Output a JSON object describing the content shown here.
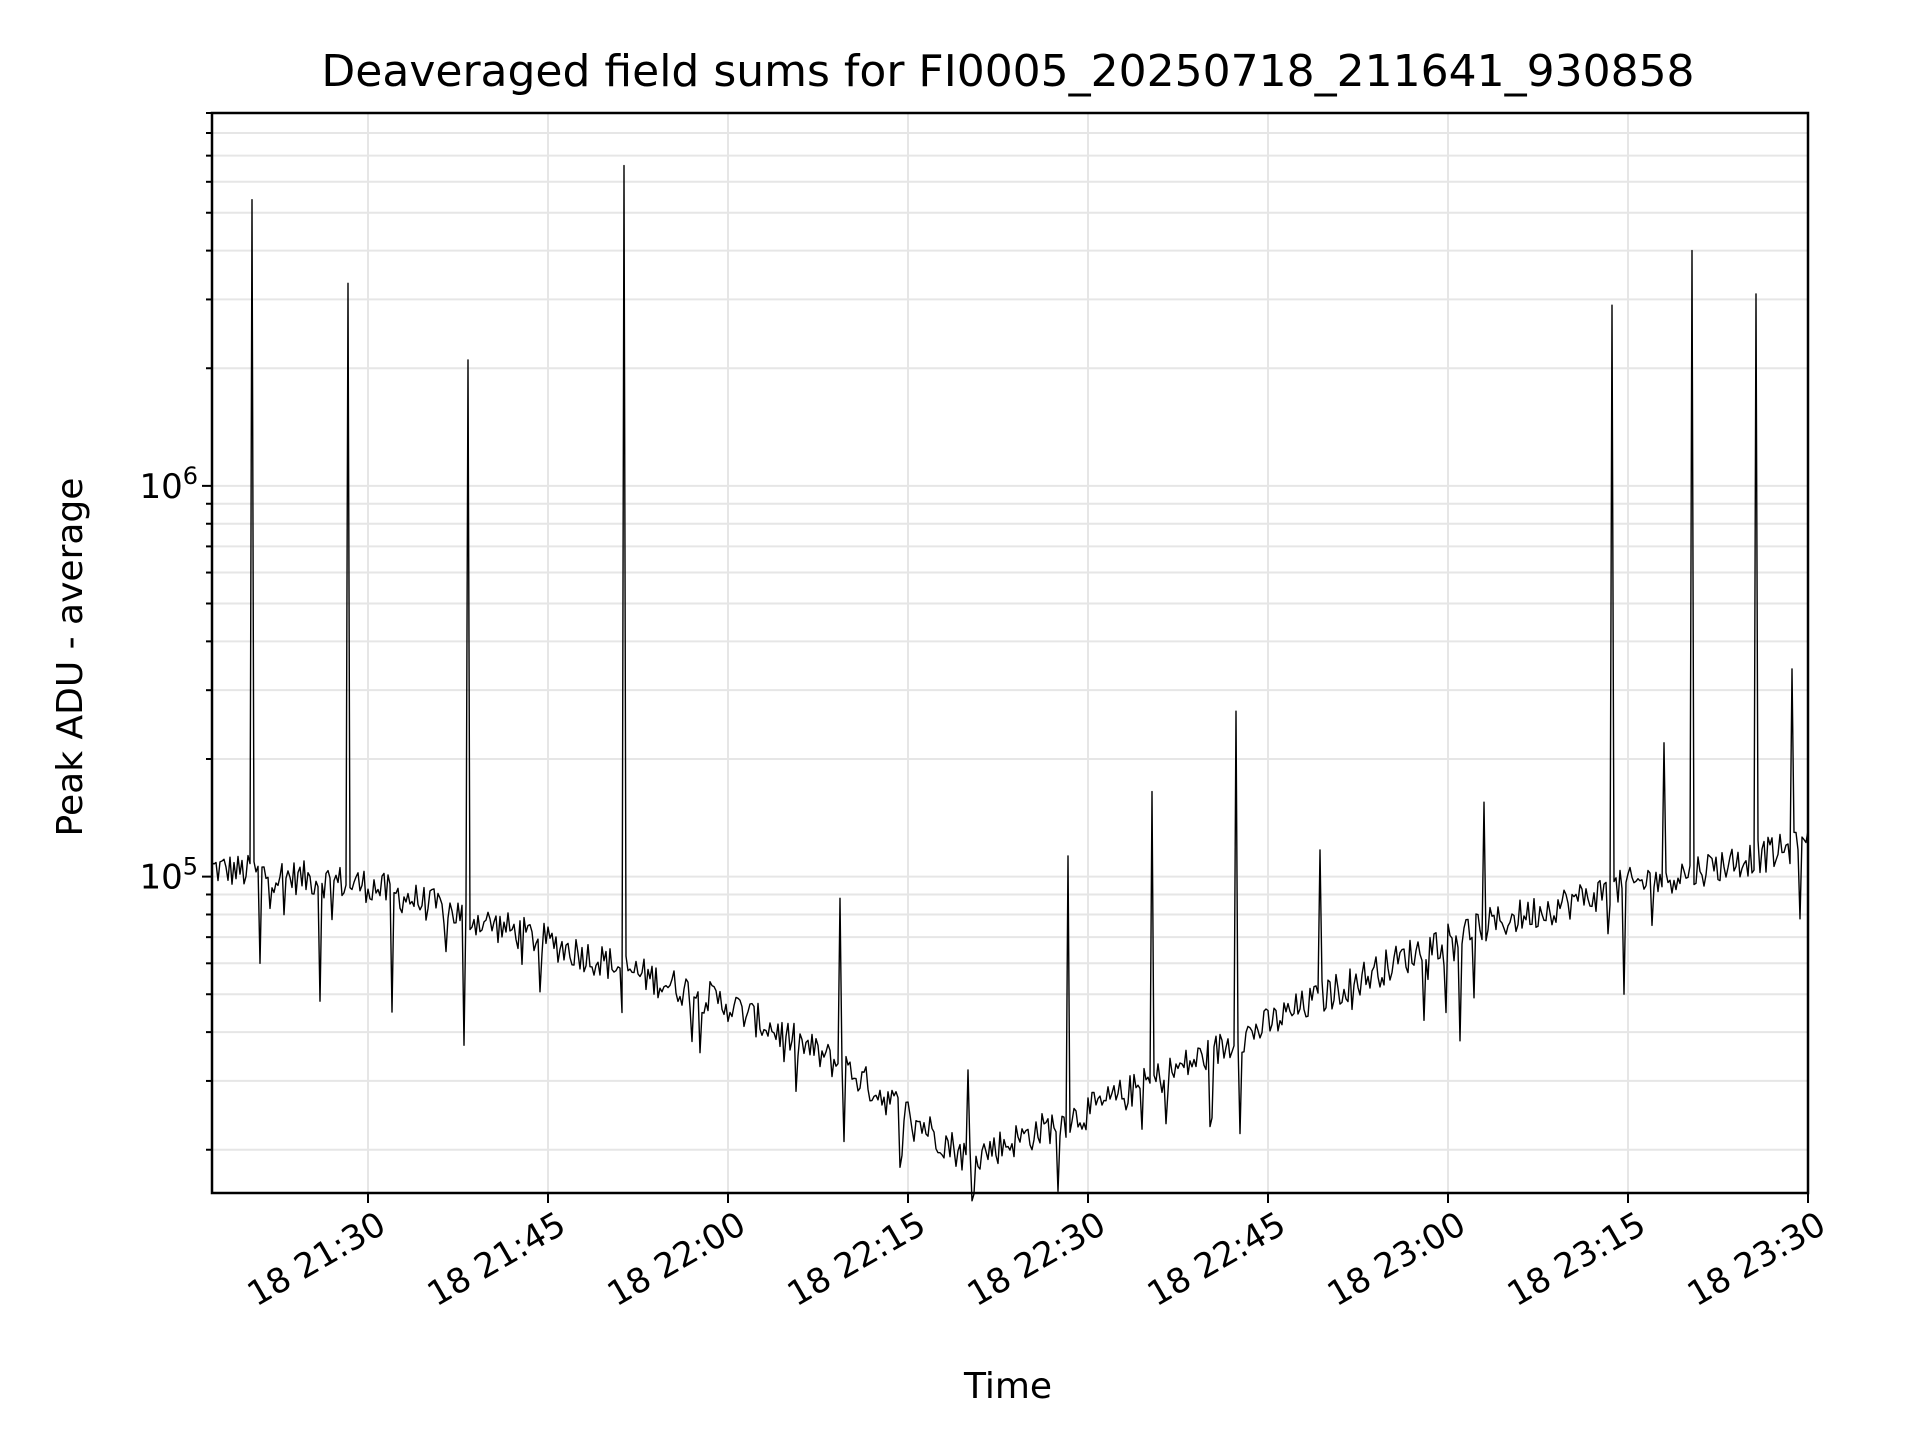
{
  "chart_data": {
    "type": "line",
    "title": "Deaveraged field sums for FI0005_20250718_211641_930858",
    "xlabel": "Time",
    "ylabel": "Peak ADU - average",
    "yscale": "log",
    "grid": true,
    "legend": false,
    "series_color": "#000000",
    "x_start": "2025-07-18 21:17",
    "x_end": "2025-07-18 23:30",
    "xlim": [
      "2025-07-18 21:17",
      "2025-07-18 23:30"
    ],
    "ylim": [
      15500,
      9000000
    ],
    "x_ticks": [
      {
        "t": "2025-07-18 21:30",
        "label": "18 21:30"
      },
      {
        "t": "2025-07-18 21:45",
        "label": "18 21:45"
      },
      {
        "t": "2025-07-18 22:00",
        "label": "18 22:00"
      },
      {
        "t": "2025-07-18 22:15",
        "label": "18 22:15"
      },
      {
        "t": "2025-07-18 22:30",
        "label": "18 22:30"
      },
      {
        "t": "2025-07-18 22:45",
        "label": "18 22:45"
      },
      {
        "t": "2025-07-18 23:00",
        "label": "18 23:00"
      },
      {
        "t": "2025-07-18 23:15",
        "label": "18 23:15"
      },
      {
        "t": "2025-07-18 23:30",
        "label": "18 23:30"
      }
    ],
    "y_ticks": [
      {
        "value": 100000,
        "base": "10",
        "exp": "5"
      },
      {
        "value": 1000000,
        "base": "10",
        "exp": "6"
      }
    ],
    "baseline": [
      [
        "2025-07-18 21:17",
        105000
      ],
      [
        "2025-07-18 21:30",
        95000
      ],
      [
        "2025-07-18 21:45",
        68000
      ],
      [
        "2025-07-18 22:00",
        47000
      ],
      [
        "2025-07-18 22:10",
        32000
      ],
      [
        "2025-07-18 22:20",
        19000
      ],
      [
        "2025-07-18 22:30",
        25000
      ],
      [
        "2025-07-18 22:40",
        35000
      ],
      [
        "2025-07-18 22:50",
        50000
      ],
      [
        "2025-07-18 23:00",
        70000
      ],
      [
        "2025-07-18 23:15",
        95000
      ],
      [
        "2025-07-18 23:30",
        120000
      ]
    ],
    "spikes": [
      {
        "t": "2025-07-18 21:20:20",
        "value": 5400000
      },
      {
        "t": "2025-07-18 21:21",
        "value": 60000
      },
      {
        "t": "2025-07-18 21:26",
        "value": 48000
      },
      {
        "t": "2025-07-18 21:28:20",
        "value": 3300000
      },
      {
        "t": "2025-07-18 21:32",
        "value": 45000
      },
      {
        "t": "2025-07-18 21:38",
        "value": 37000
      },
      {
        "t": "2025-07-18 21:38:20",
        "value": 2100000
      },
      {
        "t": "2025-07-18 21:51:20",
        "value": 6600000
      },
      {
        "t": "2025-07-18 22:09:20",
        "value": 88000
      },
      {
        "t": "2025-07-18 22:09:40",
        "value": 21000
      },
      {
        "t": "2025-07-18 22:20",
        "value": 32000
      },
      {
        "t": "2025-07-18 22:28:20",
        "value": 113000
      },
      {
        "t": "2025-07-18 22:35:20",
        "value": 165000
      },
      {
        "t": "2025-07-18 22:42:20",
        "value": 265000
      },
      {
        "t": "2025-07-18 22:42:40",
        "value": 22000
      },
      {
        "t": "2025-07-18 22:49:20",
        "value": 117000
      },
      {
        "t": "2025-07-18 23:01",
        "value": 38000
      },
      {
        "t": "2025-07-18 23:03",
        "value": 155000
      },
      {
        "t": "2025-07-18 23:13:40",
        "value": 2900000
      },
      {
        "t": "2025-07-18 23:14:40",
        "value": 50000
      },
      {
        "t": "2025-07-18 23:18",
        "value": 220000
      },
      {
        "t": "2025-07-18 23:20:20",
        "value": 4000000
      },
      {
        "t": "2025-07-18 23:25:40",
        "value": 3100000
      },
      {
        "t": "2025-07-18 23:28:40",
        "value": 340000
      },
      {
        "t": "2025-07-18 23:29:20",
        "value": 78000
      }
    ]
  }
}
